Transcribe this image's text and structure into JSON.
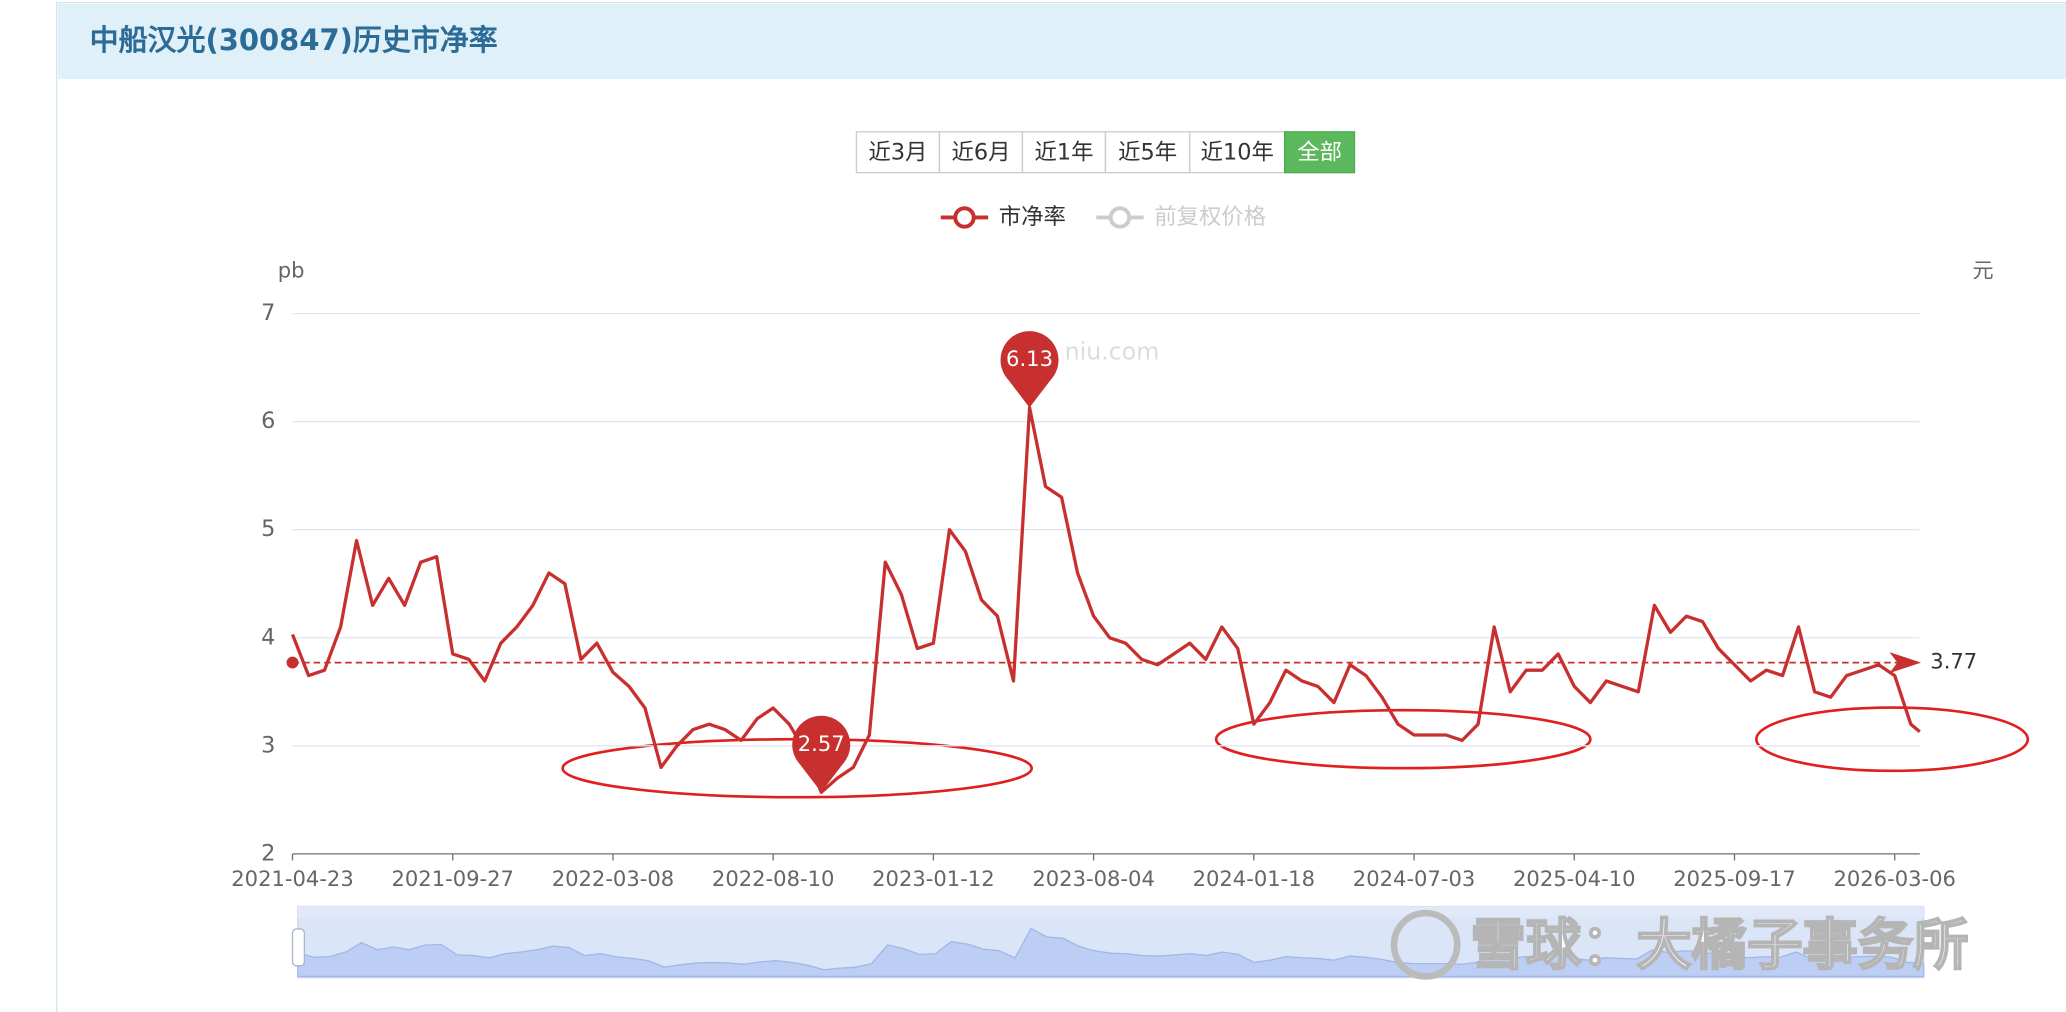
{
  "header": {
    "title": "中船汉光(300847)历史市净率"
  },
  "range_buttons": [
    "近3月",
    "近6月",
    "近1年",
    "近5年",
    "近10年",
    "全部"
  ],
  "active_button": 5,
  "watermarks": [
    "niu.com",
    "雪球：大橘子事务所"
  ],
  "chart_data": {
    "type": "line",
    "y_label": "pb",
    "y2_label": "元",
    "categories": [
      "2021-04-23",
      null,
      null,
      null,
      null,
      null,
      null,
      null,
      null,
      null,
      "2021-09-27",
      null,
      null,
      null,
      null,
      null,
      null,
      null,
      null,
      null,
      "2022-03-08",
      null,
      null,
      null,
      null,
      null,
      null,
      null,
      null,
      null,
      "2022-08-10",
      null,
      null,
      null,
      null,
      null,
      null,
      null,
      null,
      null,
      "2023-01-12",
      null,
      null,
      null,
      null,
      null,
      null,
      null,
      null,
      null,
      "2023-08-04",
      null,
      null,
      null,
      null,
      null,
      null,
      null,
      null,
      null,
      "2024-01-18",
      null,
      null,
      null,
      null,
      null,
      null,
      null,
      null,
      null,
      "2024-07-03",
      null,
      null,
      null,
      null,
      null,
      null,
      null,
      null,
      null,
      "2025-04-10",
      null,
      null,
      null,
      null,
      null,
      null,
      null,
      null,
      null,
      "2025-09-17",
      null,
      null,
      null,
      null,
      null,
      null,
      null,
      null,
      null,
      "2026-03-06",
      null,
      null
    ],
    "series": [
      {
        "name": "市净率",
        "color": "#c8302f",
        "values": [
          4.03,
          3.65,
          3.7,
          4.1,
          4.9,
          4.3,
          4.55,
          4.3,
          4.7,
          4.75,
          3.85,
          3.8,
          3.6,
          3.95,
          4.1,
          4.3,
          4.6,
          4.5,
          3.8,
          3.95,
          3.68,
          3.55,
          3.35,
          2.8,
          3.0,
          3.15,
          3.2,
          3.15,
          3.05,
          3.25,
          3.35,
          3.2,
          2.95,
          2.57,
          2.7,
          2.8,
          3.1,
          4.7,
          4.4,
          3.9,
          3.95,
          5.0,
          4.8,
          4.35,
          4.2,
          3.6,
          6.13,
          5.4,
          5.3,
          4.6,
          4.2,
          4.0,
          3.95,
          3.8,
          3.75,
          3.85,
          3.95,
          3.8,
          4.1,
          3.9,
          3.2,
          3.4,
          3.7,
          3.6,
          3.55,
          3.4,
          3.75,
          3.65,
          3.45,
          3.2,
          3.1,
          3.1,
          3.1,
          3.05,
          3.2,
          4.1,
          3.5,
          3.7,
          3.7,
          3.85,
          3.55,
          3.4,
          3.6,
          3.55,
          3.5,
          4.3,
          4.05,
          4.2,
          4.15,
          3.9,
          3.75,
          3.6,
          3.7,
          3.65,
          4.1,
          3.5,
          3.45,
          3.65,
          3.7,
          3.75,
          3.65,
          3.2,
          3.13
        ]
      },
      {
        "name": "前复权价格",
        "color": "#cccccc",
        "axis": "y2"
      }
    ],
    "ylim": [
      2,
      7
    ],
    "yticks": [
      2,
      3,
      4,
      5,
      6,
      7
    ],
    "grid": true,
    "average": 3.77
  }
}
